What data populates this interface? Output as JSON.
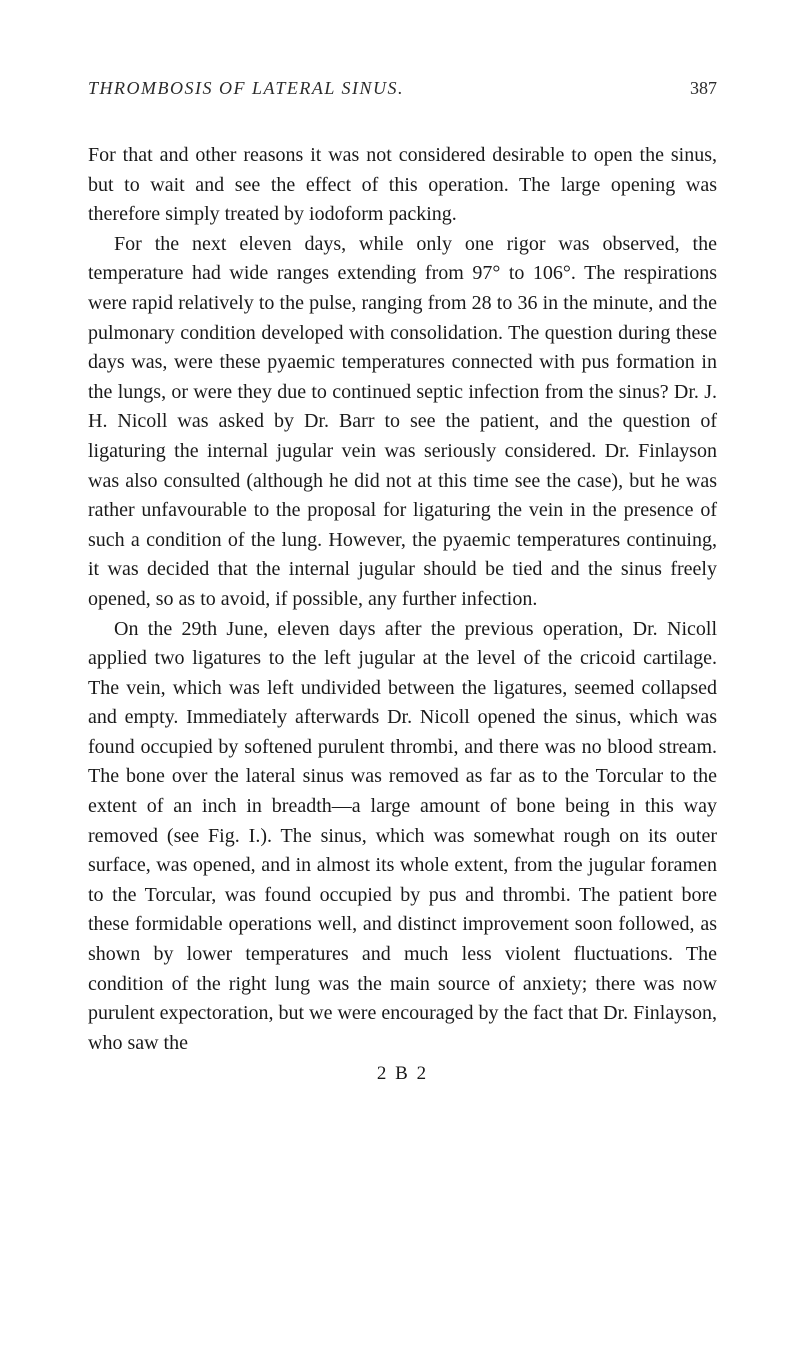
{
  "header": {
    "running_head": "THROMBOSIS OF LATERAL SINUS.",
    "page_number": "387"
  },
  "paragraphs": {
    "p1": "For that and other reasons it was not considered desirable to open the sinus, but to wait and see the effect of this operation. The large opening was therefore simply treated by iodoform packing.",
    "p2": "For the next eleven days, while only one rigor was observed, the temperature had wide ranges extending from 97° to 106°. The respirations were rapid relatively to the pulse, ranging from 28 to 36 in the minute, and the pulmonary condition developed with consolidation. The question during these days was, were these pyaemic temperatures connected with pus formation in the lungs, or were they due to continued septic infection from the sinus? Dr. J. H. Nicoll was asked by Dr. Barr to see the patient, and the question of ligaturing the internal jugular vein was seriously considered. Dr. Finlayson was also consulted (although he did not at this time see the case), but he was rather unfavourable to the proposal for ligaturing the vein in the presence of such a condition of the lung. However, the pyaemic temperatures continuing, it was decided that the internal jugular should be tied and the sinus freely opened, so as to avoid, if possible, any further infection.",
    "p3": "On the 29th June, eleven days after the previous operation, Dr. Nicoll applied two ligatures to the left jugular at the level of the cricoid cartilage. The vein, which was left undivided between the ligatures, seemed collapsed and empty. Immediately afterwards Dr. Nicoll opened the sinus, which was found occupied by softened purulent thrombi, and there was no blood stream. The bone over the lateral sinus was removed as far as to the Torcular to the extent of an inch in breadth—a large amount of bone being in this way removed (see Fig. I.). The sinus, which was somewhat rough on its outer surface, was opened, and in almost its whole extent, from the jugular foramen to the Torcular, was found occupied by pus and thrombi. The patient bore these formidable operations well, and distinct improvement soon followed, as shown by lower temperatures and much less violent fluctuations. The condition of the right lung was the main source of anxiety; there was now purulent expectoration, but we were encouraged by the fact that Dr. Finlayson, who saw the",
    "signature": "2 B 2"
  },
  "colors": {
    "background": "#ffffff",
    "text": "#1a1a1a",
    "header_text": "#2a2a2a"
  },
  "typography": {
    "body_fontsize": 20,
    "header_fontsize": 18,
    "line_height": 1.48,
    "font_family": "Georgia, Times New Roman, serif"
  }
}
